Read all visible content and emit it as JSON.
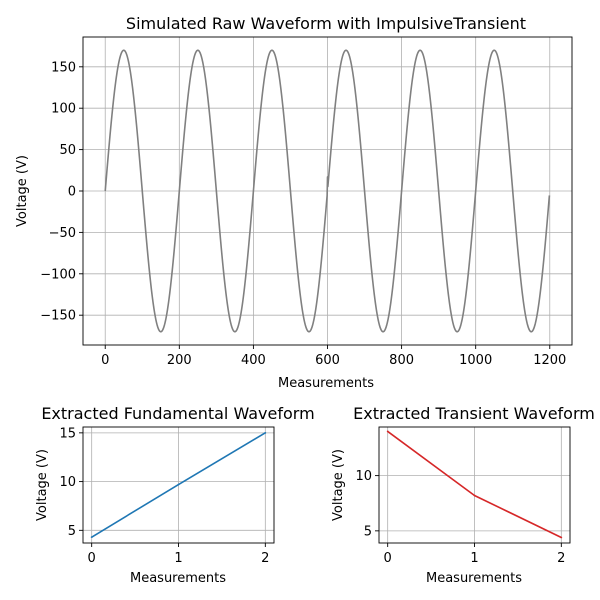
{
  "chart_data": [
    {
      "type": "line",
      "title": "Simulated Raw Waveform with ImpulsiveTransient",
      "xlabel": "Measurements",
      "ylabel": "Voltage (V)",
      "xlim": [
        -60,
        1260
      ],
      "ylim": [
        -186,
        186
      ],
      "xticks": [
        0,
        200,
        400,
        600,
        800,
        1000,
        1200
      ],
      "yticks": [
        -150,
        -100,
        -50,
        0,
        50,
        100,
        150
      ],
      "xtick_labels": [
        "0",
        "200",
        "400",
        "600",
        "800",
        "1000",
        "1200"
      ],
      "ytick_labels": [
        "−150",
        "−100",
        "−50",
        "0",
        "50",
        "100",
        "150"
      ],
      "grid": true,
      "series": [
        {
          "color": "#808080",
          "signal": {
            "amplitude": 170,
            "period": 200,
            "x_start": 0,
            "x_end": 1199,
            "transient_at": 600,
            "transient_value": 17
          }
        }
      ]
    },
    {
      "type": "line",
      "title": "Extracted Fundamental Waveform",
      "xlabel": "Measurements",
      "ylabel": "Voltage (V)",
      "xlim": [
        -0.1,
        2.1
      ],
      "ylim": [
        3.7,
        15.6
      ],
      "xticks": [
        0,
        1,
        2
      ],
      "yticks": [
        5,
        10,
        15
      ],
      "xtick_labels": [
        "0",
        "1",
        "2"
      ],
      "ytick_labels": [
        "5",
        "10",
        "15"
      ],
      "grid": true,
      "series": [
        {
          "color": "#1f77b4",
          "x": [
            0,
            1,
            2
          ],
          "y": [
            4.3,
            9.7,
            15.0
          ]
        }
      ]
    },
    {
      "type": "line",
      "title": "Extracted Transient Waveform",
      "xlabel": "Measurements",
      "ylabel": "Voltage (V)",
      "xlim": [
        -0.1,
        2.1
      ],
      "ylim": [
        3.9,
        14.4
      ],
      "xticks": [
        0,
        1,
        2
      ],
      "yticks": [
        5,
        10
      ],
      "xtick_labels": [
        "0",
        "1",
        "2"
      ],
      "ytick_labels": [
        "5",
        "10"
      ],
      "grid": true,
      "series": [
        {
          "color": "#d62728",
          "x": [
            0,
            1,
            2
          ],
          "y": [
            14.0,
            8.2,
            4.4
          ]
        }
      ]
    }
  ]
}
